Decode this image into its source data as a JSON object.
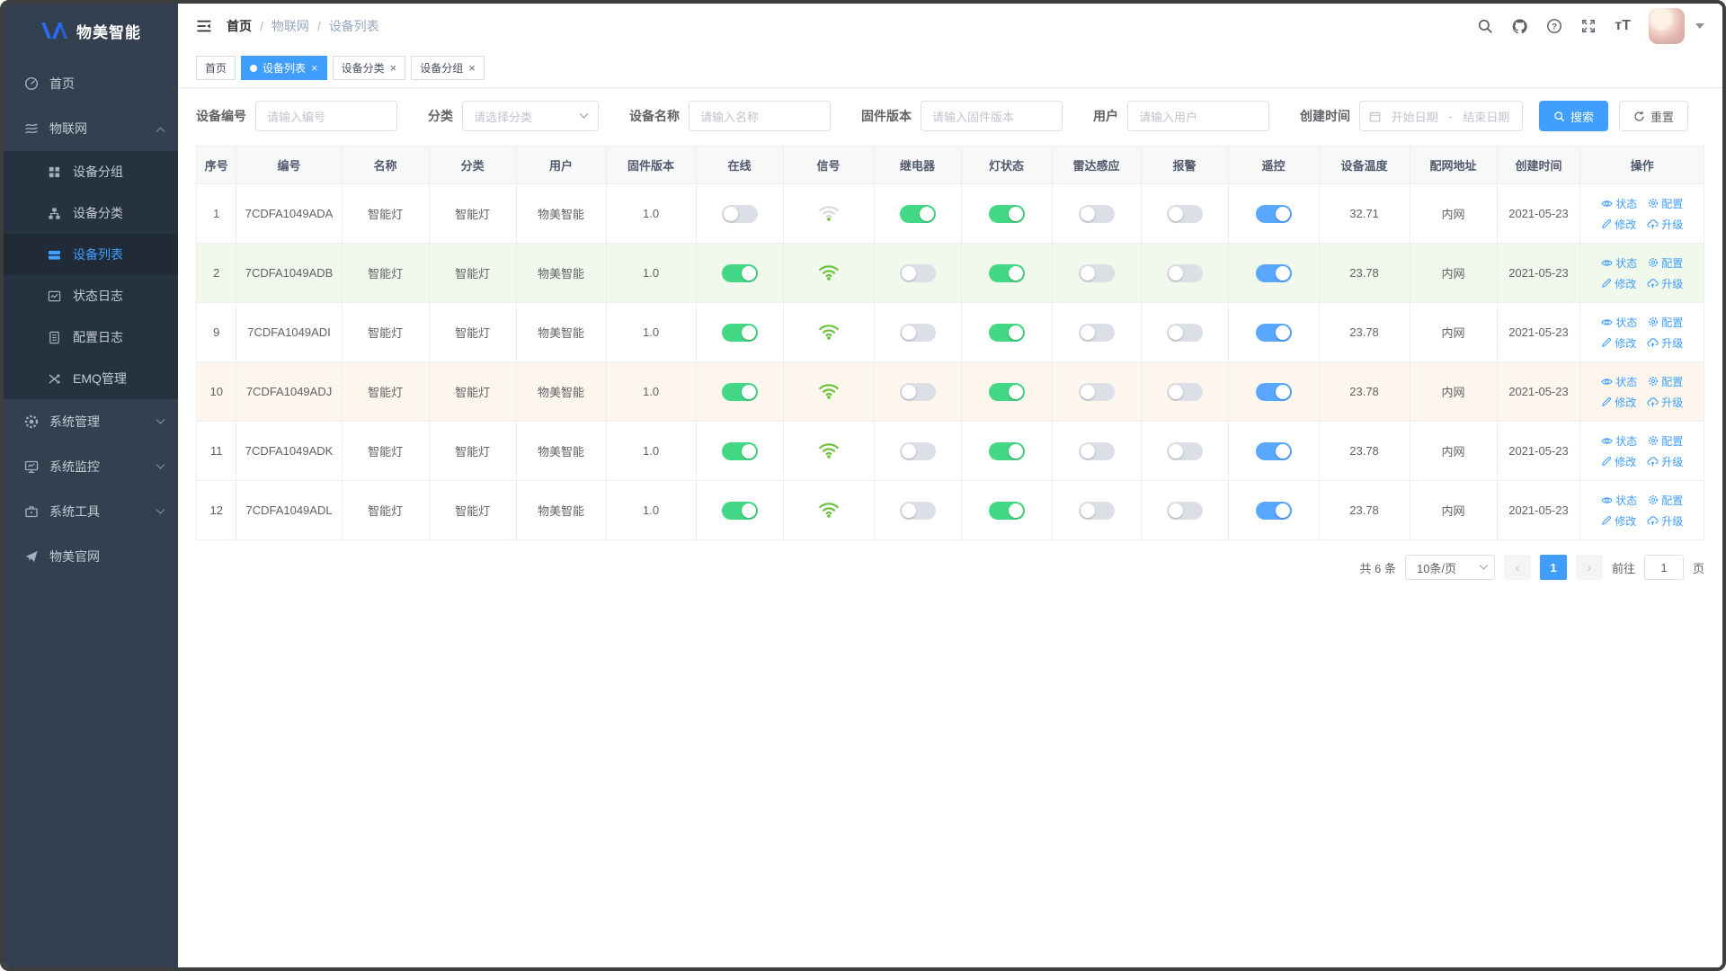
{
  "colors": {
    "accent": "#409eff",
    "sidebar_bg": "#33404f",
    "sidebar_sub_bg": "#273240",
    "sidebar_text": "#c2ccd6",
    "toggle_on": "#42d885",
    "toggle_blue": "#59a7ff",
    "toggle_off": "#dcdfe6",
    "wifi_green": "#67c23a",
    "wifi_gray": "#d4d7dc",
    "row_green": "#f0f9eb",
    "row_orange": "#fdf6ec"
  },
  "sidebar": {
    "logo_text": "物美智能",
    "items": [
      {
        "label": "首页"
      },
      {
        "label": "物联网"
      },
      {
        "label": "设备分组"
      },
      {
        "label": "设备分类"
      },
      {
        "label": "设备列表"
      },
      {
        "label": "状态日志"
      },
      {
        "label": "配置日志"
      },
      {
        "label": "EMQ管理"
      },
      {
        "label": "系统管理"
      },
      {
        "label": "系统监控"
      },
      {
        "label": "系统工具"
      },
      {
        "label": "物美官网"
      }
    ]
  },
  "breadcrumb": {
    "items": [
      "首页",
      "物联网",
      "设备列表"
    ],
    "separator": "/"
  },
  "tags": [
    {
      "label": "首页",
      "active": false,
      "closable": false
    },
    {
      "label": "设备列表",
      "active": true,
      "closable": true
    },
    {
      "label": "设备分类",
      "active": false,
      "closable": true
    },
    {
      "label": "设备分组",
      "active": false,
      "closable": true
    }
  ],
  "filters": {
    "device_sn": {
      "label": "设备编号",
      "placeholder": "请输入编号"
    },
    "category": {
      "label": "分类",
      "placeholder": "请选择分类"
    },
    "device_name": {
      "label": "设备名称",
      "placeholder": "请输入名称"
    },
    "firmware": {
      "label": "固件版本",
      "placeholder": "请输入固件版本"
    },
    "user": {
      "label": "用户",
      "placeholder": "请输入用户"
    },
    "created": {
      "label": "创建时间",
      "start_placeholder": "开始日期",
      "separator": "-",
      "end_placeholder": "结束日期"
    },
    "search_label": "搜索",
    "reset_label": "重置"
  },
  "table": {
    "columns": [
      "序号",
      "编号",
      "名称",
      "分类",
      "用户",
      "固件版本",
      "在线",
      "信号",
      "继电器",
      "灯状态",
      "雷达感应",
      "报警",
      "遥控",
      "设备温度",
      "配网地址",
      "创建时间",
      "操作"
    ],
    "actions": [
      {
        "label": "状态",
        "icon": "status-eye-icon"
      },
      {
        "label": "配置",
        "icon": "config-gear-icon"
      },
      {
        "label": "修改",
        "icon": "edit-pencil-icon"
      },
      {
        "label": "升级",
        "icon": "upgrade-cloud-icon"
      }
    ],
    "rows": [
      {
        "no": "1",
        "sn": "7CDFA1049ADA",
        "name": "智能灯",
        "category": "智能灯",
        "user": "物美智能",
        "firmware": "1.0",
        "online": false,
        "signal": "weak",
        "relay": true,
        "light": true,
        "radar": false,
        "alarm": false,
        "remote": true,
        "temperature": "32.71",
        "network": "内网",
        "created": "2021-05-23",
        "highlight": null
      },
      {
        "no": "2",
        "sn": "7CDFA1049ADB",
        "name": "智能灯",
        "category": "智能灯",
        "user": "物美智能",
        "firmware": "1.0",
        "online": true,
        "signal": "full",
        "relay": false,
        "light": true,
        "radar": false,
        "alarm": false,
        "remote": true,
        "temperature": "23.78",
        "network": "内网",
        "created": "2021-05-23",
        "highlight": "green"
      },
      {
        "no": "9",
        "sn": "7CDFA1049ADI",
        "name": "智能灯",
        "category": "智能灯",
        "user": "物美智能",
        "firmware": "1.0",
        "online": true,
        "signal": "full",
        "relay": false,
        "light": true,
        "radar": false,
        "alarm": false,
        "remote": true,
        "temperature": "23.78",
        "network": "内网",
        "created": "2021-05-23",
        "highlight": null
      },
      {
        "no": "10",
        "sn": "7CDFA1049ADJ",
        "name": "智能灯",
        "category": "智能灯",
        "user": "物美智能",
        "firmware": "1.0",
        "online": true,
        "signal": "full",
        "relay": false,
        "light": true,
        "radar": false,
        "alarm": false,
        "remote": true,
        "temperature": "23.78",
        "network": "内网",
        "created": "2021-05-23",
        "highlight": "orange"
      },
      {
        "no": "11",
        "sn": "7CDFA1049ADK",
        "name": "智能灯",
        "category": "智能灯",
        "user": "物美智能",
        "firmware": "1.0",
        "online": true,
        "signal": "full",
        "relay": false,
        "light": true,
        "radar": false,
        "alarm": false,
        "remote": true,
        "temperature": "23.78",
        "network": "内网",
        "created": "2021-05-23",
        "highlight": null
      },
      {
        "no": "12",
        "sn": "7CDFA1049ADL",
        "name": "智能灯",
        "category": "智能灯",
        "user": "物美智能",
        "firmware": "1.0",
        "online": true,
        "signal": "full",
        "relay": false,
        "light": true,
        "radar": false,
        "alarm": false,
        "remote": true,
        "temperature": "23.78",
        "network": "内网",
        "created": "2021-05-23",
        "highlight": null
      }
    ]
  },
  "pagination": {
    "total_text": "共 6 条",
    "page_size": "10条/页",
    "current_page": "1",
    "goto_label": "前往",
    "goto_value": "1",
    "page_unit": "页"
  }
}
